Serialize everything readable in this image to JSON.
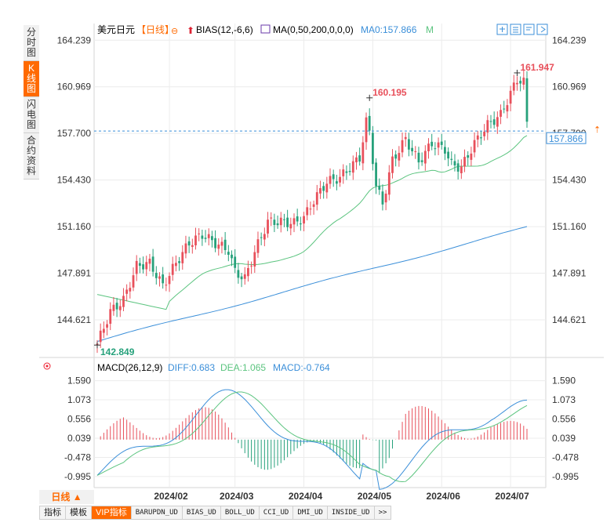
{
  "sidebar": [
    {
      "label": "分时图",
      "active": false
    },
    {
      "label": "K线图",
      "active": true
    },
    {
      "label": "闪电图",
      "active": false
    },
    {
      "label": "合约资料",
      "active": false
    }
  ],
  "header": {
    "symbol": "美元日元",
    "period_tag": "【日线】",
    "bias": "BIAS(12,-6,6)",
    "ma": "MA(0,50,200,0,0,0)",
    "ma0": "MA0:157.866",
    "m": "M"
  },
  "macd_header": {
    "title": "MACD(26,12,9)",
    "diff": "DIFF:0.683",
    "dea": "DEA:1.065",
    "macd": "MACD:-0.764"
  },
  "colors": {
    "up": "#e8505b",
    "down": "#26a17b",
    "ma50": "#5bc47f",
    "ma200": "#3b8fd9",
    "diff": "#3b8fd9",
    "dea": "#5bc47f",
    "accent": "#ff6a00",
    "current": "#3b8fd9"
  },
  "period_selector": "日线 ▲",
  "bottom_tabs": [
    "指标",
    "模板",
    "VIP指标",
    "BARUPDN_UD",
    "BIAS_UD",
    "BOLL_UD",
    "CCI_UD",
    "DMI_UD",
    "INSIDE_UD",
    ">>"
  ],
  "chart_data": [
    {
      "type": "candlestick",
      "title": "美元日元【日线】",
      "y_ticks": [
        "164.239",
        "160.969",
        "157.700",
        "154.430",
        "151.160",
        "147.891",
        "144.621"
      ],
      "y_tick_values": [
        164.239,
        160.969,
        157.7,
        154.43,
        151.16,
        147.891,
        144.621
      ],
      "ylim": [
        142.2,
        165.3
      ],
      "x_ticks": [
        "2024/02",
        "2024/03",
        "2024/04",
        "2024/05",
        "2024/06",
        "2024/07"
      ],
      "x_tick_index": [
        22,
        42,
        63,
        84,
        105,
        126
      ],
      "n_bars": 132,
      "annotations": [
        {
          "label": "160.195",
          "value": 160.195,
          "index": 83
        },
        {
          "label": "161.947",
          "value": 161.947,
          "index": 128
        },
        {
          "label": "142.849",
          "value": 142.849,
          "index": 0
        }
      ],
      "current_price": {
        "label": "157.866",
        "value": 157.866
      },
      "series": [
        {
          "name": "MA0",
          "role": "ma50"
        },
        {
          "name": "",
          "role": "ma200"
        }
      ]
    },
    {
      "type": "macd",
      "title": "MACD(26,12,9)",
      "y_ticks": [
        "1.590",
        "1.073",
        "0.556",
        "0.039",
        "-0.478",
        "-0.995"
      ],
      "y_tick_values": [
        1.59,
        1.073,
        0.556,
        0.039,
        -0.478,
        -0.995
      ],
      "ylim": [
        -1.25,
        1.75
      ],
      "values": {
        "diff": 0.683,
        "dea": 1.065,
        "macd": -0.764
      }
    }
  ]
}
